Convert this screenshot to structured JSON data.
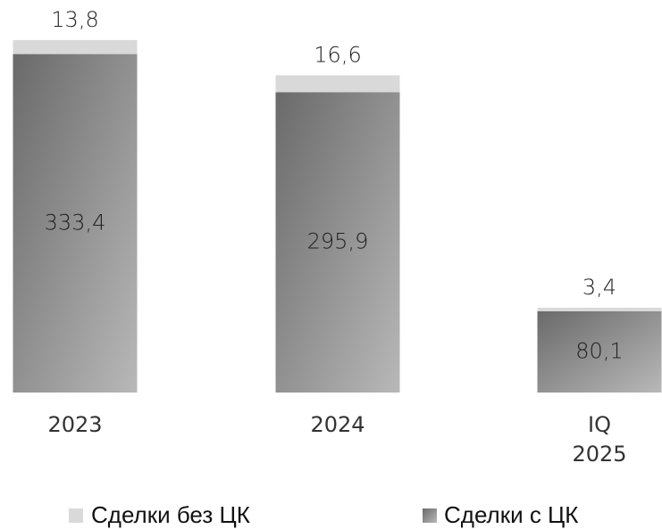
{
  "chart_data": {
    "type": "bar",
    "stacked": true,
    "categories": [
      "2023",
      "2024",
      "IQ 2025"
    ],
    "series": [
      {
        "name": "Сделки с ЦК",
        "color": "#8a8a8a",
        "values": [
          333.4,
          295.9,
          80.1
        ],
        "value_labels": [
          "333,4",
          "295,9",
          "80,1"
        ]
      },
      {
        "name": "Сделки без ЦК",
        "color": "#d9d9d9",
        "values": [
          13.8,
          16.6,
          3.4
        ],
        "value_labels": [
          "13,8",
          "16,6",
          "3,4"
        ]
      }
    ]
  }
}
